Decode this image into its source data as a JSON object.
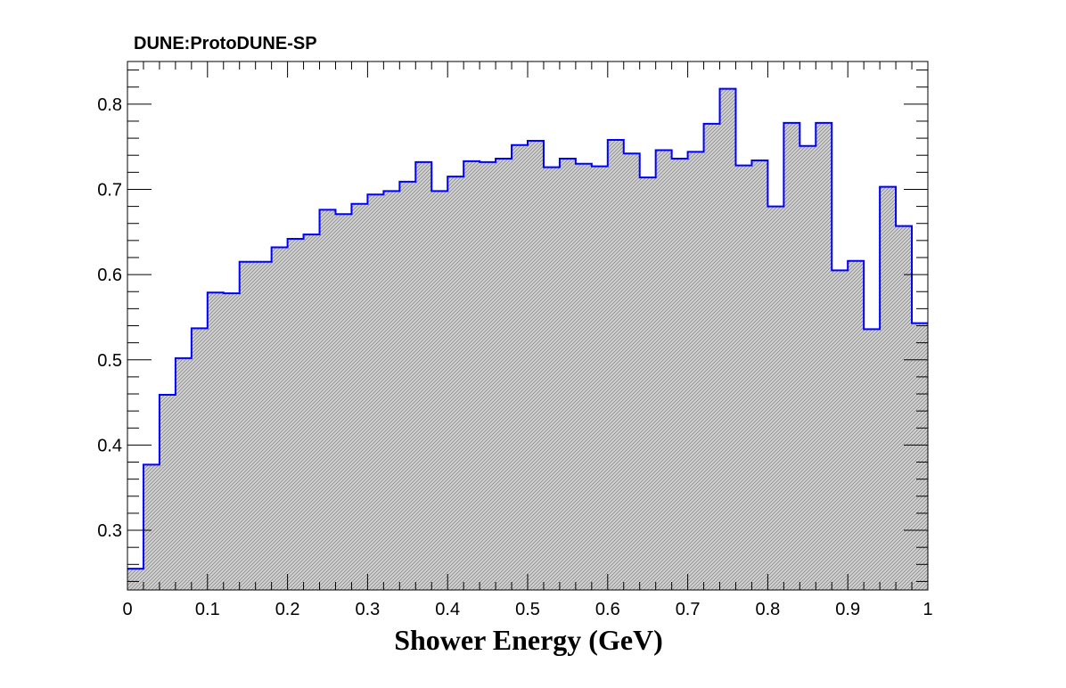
{
  "chart_data": {
    "type": "bar",
    "title": "DUNE:ProtoDUNE-SP",
    "xlabel": "Shower Energy (GeV)",
    "ylabel": "",
    "xlim": [
      0,
      1
    ],
    "ylim": [
      0.23,
      0.85
    ],
    "x_ticks": [
      "0",
      "0.1",
      "0.2",
      "0.3",
      "0.4",
      "0.5",
      "0.6",
      "0.7",
      "0.8",
      "0.9",
      "1"
    ],
    "y_ticks": [
      "0.3",
      "0.4",
      "0.5",
      "0.6",
      "0.7",
      "0.8"
    ],
    "grid": false,
    "bin_width": 0.02,
    "bin_low_edges": [
      0.0,
      0.02,
      0.04,
      0.06,
      0.08,
      0.1,
      0.12,
      0.14,
      0.16,
      0.18,
      0.2,
      0.22,
      0.24,
      0.26,
      0.28,
      0.3,
      0.32,
      0.34,
      0.36,
      0.38,
      0.4,
      0.42,
      0.44,
      0.46,
      0.48,
      0.5,
      0.52,
      0.54,
      0.56,
      0.58,
      0.6,
      0.62,
      0.64,
      0.66,
      0.68,
      0.7,
      0.72,
      0.74,
      0.76,
      0.78,
      0.8,
      0.82,
      0.84,
      0.86,
      0.88,
      0.9,
      0.92,
      0.94,
      0.96,
      0.98
    ],
    "values": [
      0.255,
      0.377,
      0.459,
      0.502,
      0.537,
      0.579,
      0.578,
      0.615,
      0.615,
      0.632,
      0.642,
      0.647,
      0.676,
      0.671,
      0.683,
      0.694,
      0.698,
      0.709,
      0.732,
      0.698,
      0.715,
      0.733,
      0.732,
      0.736,
      0.752,
      0.757,
      0.726,
      0.736,
      0.73,
      0.727,
      0.758,
      0.742,
      0.714,
      0.746,
      0.736,
      0.744,
      0.777,
      0.818,
      0.728,
      0.734,
      0.68,
      0.778,
      0.751,
      0.778,
      0.605,
      0.616,
      0.536,
      0.703,
      0.657,
      0.543
    ],
    "colors": {
      "line": "#0000ff",
      "fill": "#bdbdbd",
      "hatch": "#8c8c8c",
      "frame": "#000000"
    }
  }
}
